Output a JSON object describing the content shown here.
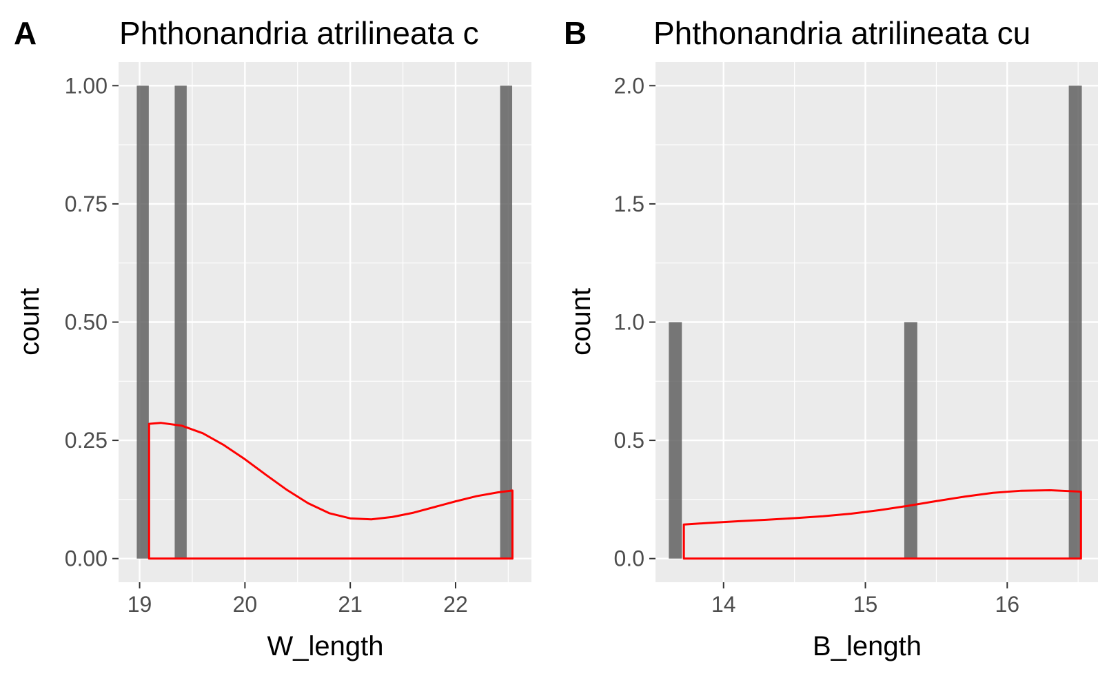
{
  "colors": {
    "panel_bg": "#EBEBEB",
    "grid": "#FFFFFF",
    "bar_fill": "#595959",
    "bar_opacity": 0.8,
    "density_line": "#FF0000",
    "tick": "#333333",
    "tick_label": "#4D4D4D"
  },
  "chart_data": [
    {
      "type": "bar",
      "panel_label": "A",
      "title": "Phthonandria atrilineata c",
      "xlabel": "W_length",
      "ylabel": "count",
      "xlim": [
        18.8,
        22.72
      ],
      "ylim": [
        -0.05,
        1.05
      ],
      "x_ticks": [
        19,
        20,
        21,
        22
      ],
      "x_tick_labels": [
        "19",
        "20",
        "21",
        "22"
      ],
      "y_ticks": [
        0,
        0.25,
        0.5,
        0.75,
        1.0
      ],
      "y_tick_labels": [
        "0.00",
        "0.25",
        "0.50",
        "0.75",
        "1.00"
      ],
      "grid": true,
      "histogram": {
        "bar_width": 0.114,
        "bars": [
          {
            "x": 19.03,
            "count": 1
          },
          {
            "x": 19.39,
            "count": 1
          },
          {
            "x": 22.48,
            "count": 1
          }
        ]
      },
      "density_curve": {
        "x": [
          19.09,
          19.2,
          19.4,
          19.6,
          19.8,
          20.0,
          20.2,
          20.4,
          20.6,
          20.8,
          21.0,
          21.2,
          21.4,
          21.6,
          21.8,
          22.0,
          22.2,
          22.4,
          22.54
        ],
        "y": [
          0.285,
          0.287,
          0.281,
          0.265,
          0.24,
          0.21,
          0.177,
          0.145,
          0.117,
          0.096,
          0.085,
          0.083,
          0.088,
          0.097,
          0.109,
          0.121,
          0.132,
          0.14,
          0.144
        ]
      }
    },
    {
      "type": "bar",
      "panel_label": "B",
      "title": "Phthonandria atrilineata cu",
      "xlabel": "B_length",
      "ylabel": "count",
      "xlim": [
        13.52,
        16.64
      ],
      "ylim": [
        -0.1,
        2.1
      ],
      "x_ticks": [
        14,
        15,
        16
      ],
      "x_tick_labels": [
        "14",
        "15",
        "16"
      ],
      "y_ticks": [
        0,
        0.5,
        1.0,
        1.5,
        2.0
      ],
      "y_tick_labels": [
        "0.0",
        "0.5",
        "1.0",
        "1.5",
        "2.0"
      ],
      "grid": true,
      "histogram": {
        "bar_width": 0.092,
        "bars": [
          {
            "x": 13.66,
            "count": 1
          },
          {
            "x": 15.32,
            "count": 1
          },
          {
            "x": 16.48,
            "count": 2
          }
        ]
      },
      "density_curve": {
        "x": [
          13.72,
          13.9,
          14.1,
          14.3,
          14.5,
          14.7,
          14.9,
          15.1,
          15.3,
          15.5,
          15.7,
          15.9,
          16.1,
          16.3,
          16.52
        ],
        "y": [
          0.144,
          0.151,
          0.158,
          0.164,
          0.171,
          0.179,
          0.19,
          0.205,
          0.223,
          0.243,
          0.262,
          0.278,
          0.287,
          0.289,
          0.283
        ]
      }
    }
  ]
}
